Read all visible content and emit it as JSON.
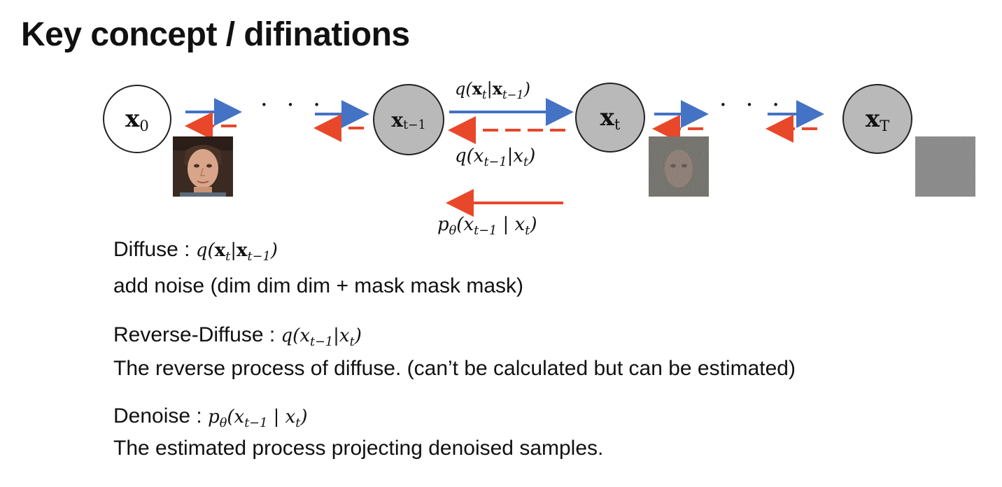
{
  "title": "Key concept / difinations",
  "nodes": {
    "x0": {
      "var": "x",
      "sub": "0"
    },
    "xt_minus_1": {
      "var": "x",
      "sub": "t−1"
    },
    "xt": {
      "var": "x",
      "sub": "t"
    },
    "xT": {
      "var": "x",
      "sub": "T"
    }
  },
  "ellipsis": "· · ·",
  "formulas": {
    "forward": {
      "q": "q(",
      "a": "x",
      "a_sub": "t",
      "bar": "|",
      "b": "x",
      "b_sub": "t−1",
      "close": ")"
    },
    "reverse": {
      "q": "q(x",
      "a_sub": "t−1",
      "mid": "|x",
      "b_sub": "t",
      "close": ")"
    },
    "denoise": {
      "p": "p",
      "p_sub": "θ",
      "open": "(x",
      "a_sub": "t−1",
      "mid": " | x",
      "b_sub": "t",
      "close": ")"
    }
  },
  "definitions": {
    "diffuse_label": "Diffuse : ",
    "diffuse_desc": "add noise (dim dim dim + mask mask mask)",
    "reverse_label": "Reverse-Diffuse : ",
    "reverse_desc": "The reverse process of diffuse. (can’t be calculated but can be estimated)",
    "denoise_label": "Denoise : ",
    "denoise_desc": "The estimated process projecting denoised samples."
  },
  "colors": {
    "forward_arrow": "#4472c4",
    "reverse_arrow": "#e8472a",
    "node_gray": "#b9b9b9"
  }
}
